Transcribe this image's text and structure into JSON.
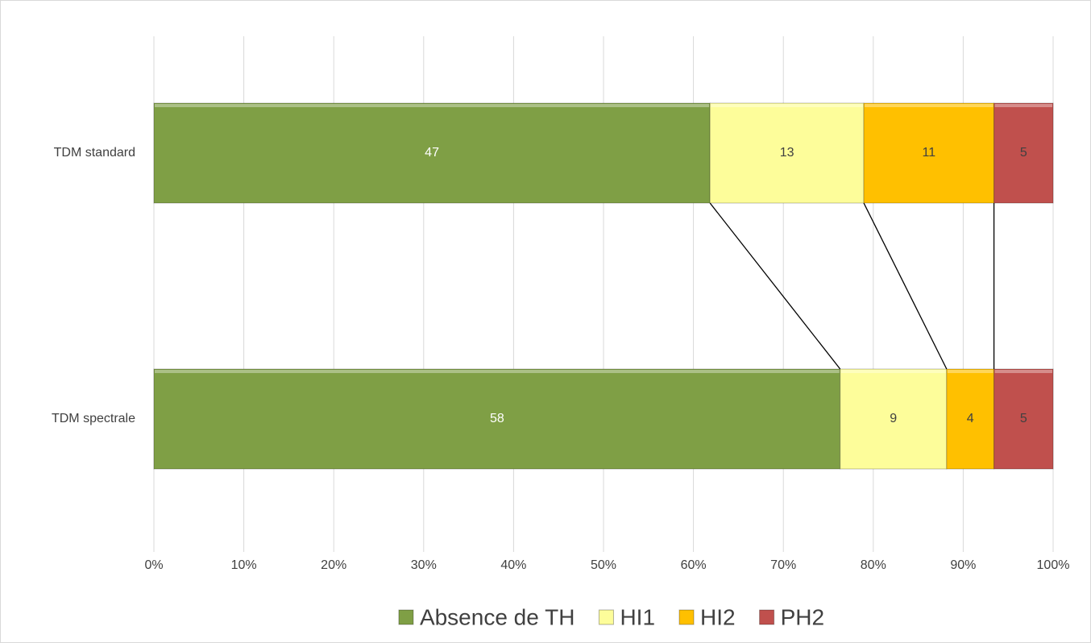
{
  "chart_data": {
    "type": "bar",
    "orientation": "horizontal",
    "stacking": "percent",
    "categories": [
      "TDM standard",
      "TDM spectrale"
    ],
    "series": [
      {
        "name": "Absence de TH",
        "color": "#7f9f45",
        "values": [
          47,
          58
        ]
      },
      {
        "name": "HI1",
        "color": "#fdfd9a",
        "values": [
          13,
          9
        ]
      },
      {
        "name": "HI2",
        "color": "#ffc000",
        "values": [
          11,
          4
        ]
      },
      {
        "name": "PH2",
        "color": "#c0504d",
        "values": [
          5,
          5
        ]
      }
    ],
    "xlim": [
      0,
      100
    ],
    "xticks": [
      {
        "value": 0,
        "label": "0%"
      },
      {
        "value": 10,
        "label": "10%"
      },
      {
        "value": 20,
        "label": "20%"
      },
      {
        "value": 30,
        "label": "30%"
      },
      {
        "value": 40,
        "label": "40%"
      },
      {
        "value": 50,
        "label": "50%"
      },
      {
        "value": 60,
        "label": "60%"
      },
      {
        "value": 70,
        "label": "70%"
      },
      {
        "value": 80,
        "label": "80%"
      },
      {
        "value": 90,
        "label": "90%"
      },
      {
        "value": 100,
        "label": "100%"
      }
    ],
    "grid": true,
    "series_lines": true,
    "legend": "bottom"
  }
}
